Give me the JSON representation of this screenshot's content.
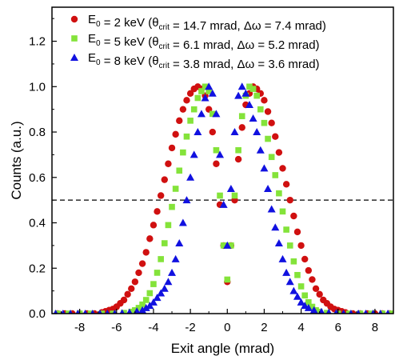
{
  "chart_data": {
    "type": "scatter",
    "title": "",
    "xlabel": "Exit angle (mrad)",
    "ylabel": "Counts (a.u.)",
    "xlim": [
      -9.5,
      9.0
    ],
    "ylim": [
      0.0,
      1.35
    ],
    "xticks": [
      "-8",
      "-6",
      "-4",
      "-2",
      "0",
      "2",
      "4",
      "6",
      "8"
    ],
    "yticks": [
      "0.0",
      "0.2",
      "0.4",
      "0.6",
      "0.8",
      "1.0",
      "1.2"
    ],
    "grid": false,
    "legend_position": "top-left",
    "reference_line": {
      "y": 0.5,
      "style": "dashed"
    },
    "series": [
      {
        "name": "E0 = 2 keV (θcrit = 14.7 mrad, Δω = 7.4 mrad)",
        "legend_base": "E",
        "legend_sub": "0",
        "legend_mid": " = 2 keV (θ",
        "legend_sub2": "crit",
        "legend_rest": " = 14.7 mrad, Δω = 7.4 mrad)",
        "marker": "circle",
        "color": "#d01010",
        "x": [
          -9.2,
          -8.8,
          -8.4,
          -8.0,
          -7.6,
          -7.2,
          -6.8,
          -6.6,
          -6.4,
          -6.2,
          -6.0,
          -5.8,
          -5.6,
          -5.4,
          -5.2,
          -5.0,
          -4.8,
          -4.6,
          -4.4,
          -4.2,
          -4.0,
          -3.8,
          -3.6,
          -3.4,
          -3.2,
          -3.0,
          -2.8,
          -2.6,
          -2.4,
          -2.2,
          -2.0,
          -1.8,
          -1.6,
          -1.4,
          -1.2,
          -1.0,
          -0.8,
          -0.6,
          -0.4,
          -0.2,
          0.0,
          0.2,
          0.4,
          0.6,
          0.8,
          1.0,
          1.2,
          1.4,
          1.6,
          1.8,
          2.0,
          2.2,
          2.4,
          2.6,
          2.8,
          3.0,
          3.2,
          3.4,
          3.6,
          3.8,
          4.0,
          4.2,
          4.4,
          4.6,
          4.8,
          5.0,
          5.2,
          5.4,
          5.6,
          5.8,
          6.0,
          6.2,
          6.4,
          6.8,
          7.2,
          7.6,
          8.0,
          8.4,
          8.8
        ],
        "y": [
          0.0,
          0.0,
          0.0,
          0.0,
          0.0,
          0.0,
          0.005,
          0.01,
          0.015,
          0.02,
          0.03,
          0.045,
          0.06,
          0.085,
          0.11,
          0.14,
          0.18,
          0.22,
          0.27,
          0.33,
          0.39,
          0.45,
          0.52,
          0.59,
          0.66,
          0.73,
          0.79,
          0.85,
          0.9,
          0.94,
          0.97,
          0.99,
          1.0,
          0.99,
          0.96,
          0.9,
          0.8,
          0.66,
          0.48,
          0.3,
          0.14,
          0.3,
          0.5,
          0.68,
          0.82,
          0.92,
          0.97,
          1.0,
          0.99,
          0.97,
          0.94,
          0.89,
          0.84,
          0.78,
          0.71,
          0.64,
          0.57,
          0.5,
          0.43,
          0.36,
          0.3,
          0.24,
          0.19,
          0.15,
          0.11,
          0.085,
          0.06,
          0.045,
          0.03,
          0.02,
          0.015,
          0.01,
          0.005,
          0.0,
          0.0,
          0.0,
          0.0,
          0.0,
          0.0
        ]
      },
      {
        "name": "E0 = 5 keV (θcrit = 6.1 mrad, Δω = 5.2 mrad)",
        "legend_base": "E",
        "legend_sub": "0",
        "legend_mid": " = 5 keV (θ",
        "legend_sub2": "crit",
        "legend_rest": " = 6.1 mrad, Δω = 5.2 mrad)",
        "marker": "square",
        "color": "#84e33a",
        "x": [
          -9.2,
          -8.6,
          -8.0,
          -7.4,
          -6.8,
          -6.2,
          -5.6,
          -5.2,
          -5.0,
          -4.8,
          -4.6,
          -4.4,
          -4.2,
          -4.0,
          -3.8,
          -3.6,
          -3.4,
          -3.2,
          -3.0,
          -2.8,
          -2.6,
          -2.4,
          -2.2,
          -2.0,
          -1.8,
          -1.6,
          -1.4,
          -1.2,
          -1.0,
          -0.8,
          -0.6,
          -0.4,
          -0.2,
          0.0,
          0.2,
          0.4,
          0.6,
          0.8,
          1.0,
          1.2,
          1.4,
          1.6,
          1.8,
          2.0,
          2.2,
          2.4,
          2.6,
          2.8,
          3.0,
          3.2,
          3.4,
          3.6,
          3.8,
          4.0,
          4.2,
          4.4,
          4.6,
          4.8,
          5.0,
          5.4,
          6.0,
          6.6,
          7.2,
          7.8,
          8.4,
          8.9
        ],
        "y": [
          0.0,
          0.0,
          0.0,
          0.0,
          0.0,
          0.0,
          0.003,
          0.008,
          0.015,
          0.025,
          0.04,
          0.06,
          0.09,
          0.13,
          0.18,
          0.24,
          0.31,
          0.39,
          0.47,
          0.55,
          0.63,
          0.71,
          0.78,
          0.85,
          0.9,
          0.95,
          0.98,
          1.0,
          0.98,
          0.88,
          0.72,
          0.52,
          0.3,
          0.15,
          0.3,
          0.52,
          0.72,
          0.87,
          0.96,
          1.0,
          0.99,
          0.96,
          0.9,
          0.84,
          0.77,
          0.69,
          0.61,
          0.53,
          0.45,
          0.37,
          0.3,
          0.23,
          0.17,
          0.12,
          0.08,
          0.05,
          0.03,
          0.015,
          0.008,
          0.003,
          0.0,
          0.0,
          0.0,
          0.0,
          0.0,
          0.0
        ]
      },
      {
        "name": "E0 = 8 keV (θcrit = 3.8 mrad, Δω = 3.6 mrad)",
        "legend_base": "E",
        "legend_sub": "0",
        "legend_mid": " = 8 keV (θ",
        "legend_sub2": "crit",
        "legend_rest": " = 3.8 mrad, Δω = 3.6 mrad)",
        "marker": "triangle",
        "color": "#1111e0",
        "x": [
          -9.3,
          -8.9,
          -8.5,
          -8.1,
          -7.7,
          -7.3,
          -6.9,
          -6.5,
          -6.1,
          -5.7,
          -5.3,
          -4.9,
          -4.6,
          -4.4,
          -4.2,
          -4.0,
          -3.8,
          -3.6,
          -3.4,
          -3.2,
          -3.0,
          -2.8,
          -2.6,
          -2.4,
          -2.2,
          -2.0,
          -1.8,
          -1.6,
          -1.4,
          -1.2,
          -1.0,
          -0.8,
          -0.6,
          -0.4,
          -0.2,
          0.0,
          0.2,
          0.4,
          0.6,
          0.8,
          1.0,
          1.2,
          1.4,
          1.6,
          1.8,
          2.0,
          2.2,
          2.4,
          2.6,
          2.8,
          3.0,
          3.2,
          3.4,
          3.6,
          3.8,
          4.0,
          4.2,
          4.4,
          4.7,
          5.1,
          5.5,
          5.9,
          6.3,
          6.7,
          7.1,
          7.5,
          7.9,
          8.3,
          8.7
        ],
        "y": [
          0.0,
          0.0,
          0.0,
          0.0,
          0.0,
          0.0,
          0.0,
          0.0,
          0.0,
          0.002,
          0.005,
          0.01,
          0.015,
          0.025,
          0.035,
          0.05,
          0.07,
          0.09,
          0.11,
          0.14,
          0.18,
          0.24,
          0.31,
          0.4,
          0.5,
          0.6,
          0.7,
          0.8,
          0.88,
          0.95,
          1.0,
          0.97,
          0.88,
          0.7,
          0.48,
          0.3,
          0.55,
          0.8,
          0.96,
          1.0,
          0.97,
          0.92,
          0.86,
          0.8,
          0.72,
          0.64,
          0.55,
          0.46,
          0.38,
          0.31,
          0.24,
          0.18,
          0.14,
          0.1,
          0.075,
          0.05,
          0.035,
          0.025,
          0.015,
          0.008,
          0.004,
          0.002,
          0.0,
          0.0,
          0.0,
          0.0,
          0.0,
          0.0,
          0.0
        ]
      }
    ]
  }
}
